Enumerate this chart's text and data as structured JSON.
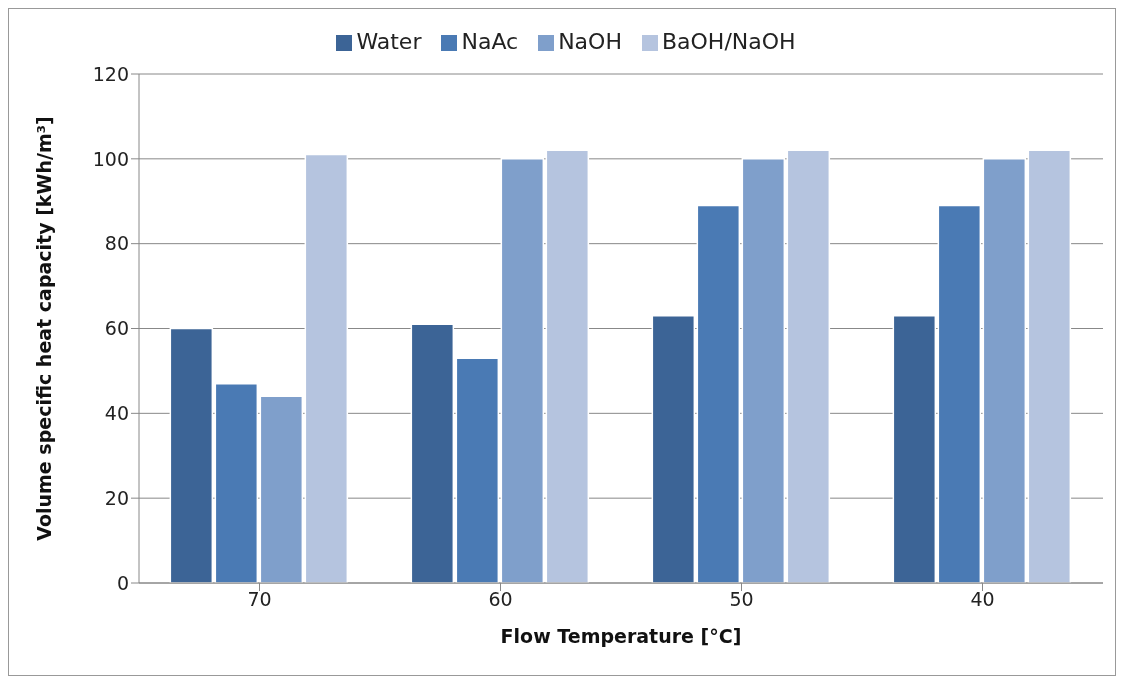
{
  "chart_data": {
    "type": "bar",
    "xlabel": "Flow Temperature [°C]",
    "ylabel": "Volume specific heat capacity [kWh/m³]",
    "categories": [
      "70",
      "60",
      "50",
      "40"
    ],
    "series": [
      {
        "name": "Water",
        "color": "#3c6496",
        "values": [
          60,
          61,
          63,
          63
        ]
      },
      {
        "name": "NaAc",
        "color": "#4a7ab4",
        "values": [
          47,
          53,
          89,
          89
        ]
      },
      {
        "name": "NaOH",
        "color": "#7f9fcb",
        "values": [
          44,
          100,
          100,
          100
        ]
      },
      {
        "name": "BaOH/NaOH",
        "color": "#b5c4df",
        "values": [
          101,
          102,
          102,
          102
        ]
      }
    ],
    "ylim": [
      0,
      120
    ],
    "yticks": [
      0,
      20,
      40,
      60,
      80,
      100,
      120
    ],
    "grid": "y",
    "legend": "top"
  }
}
